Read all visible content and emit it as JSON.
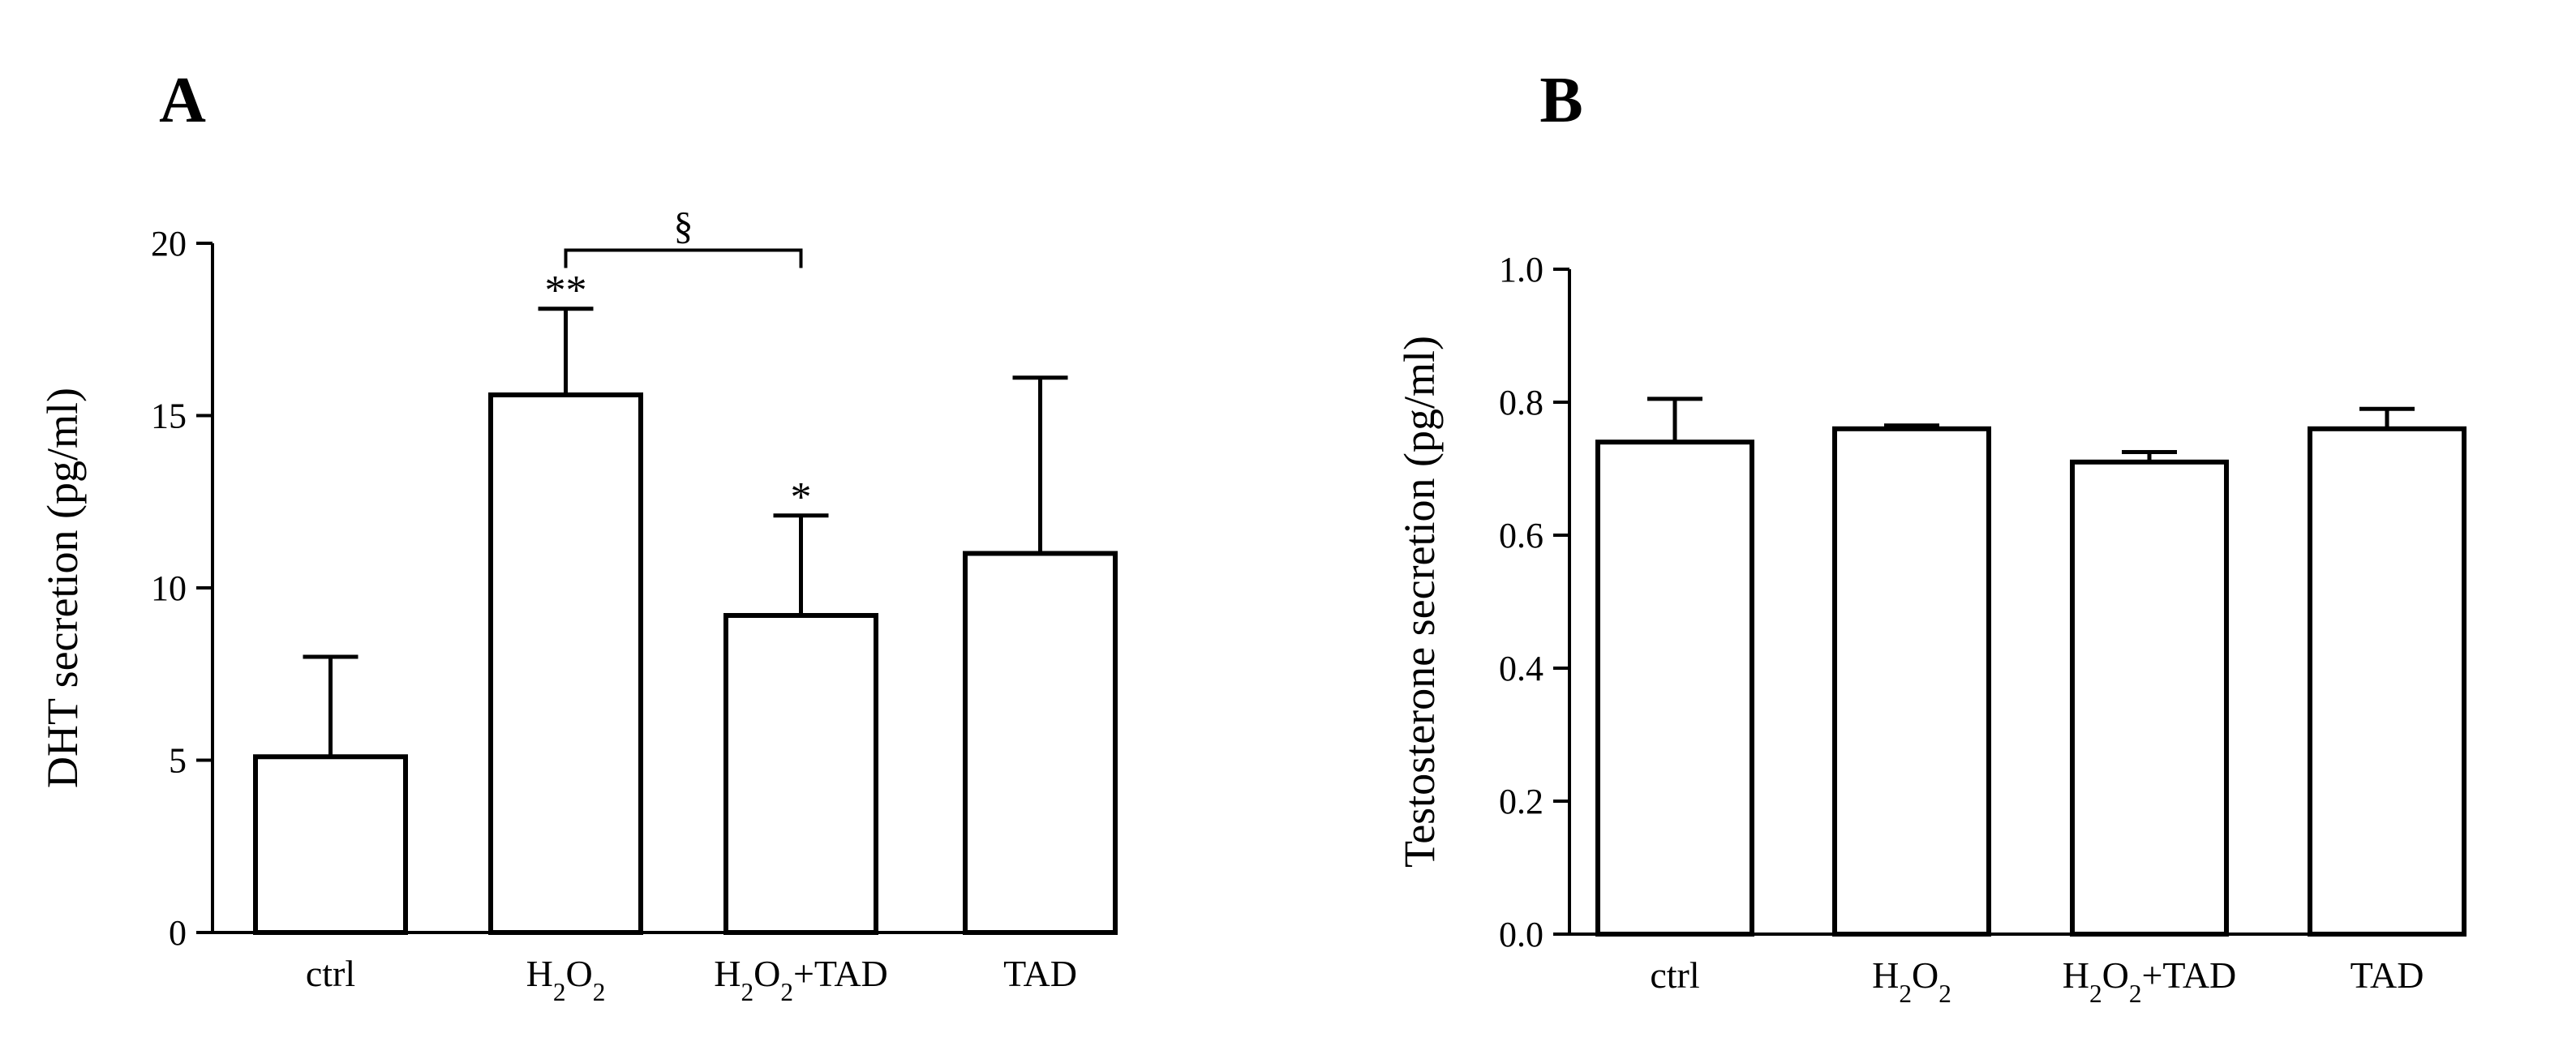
{
  "colors": {
    "ink": "#000000",
    "bar_fill": "#ffffff",
    "background": "#ffffff"
  },
  "chart_data": [
    {
      "panel_label": "A",
      "type": "bar",
      "title": "",
      "xlabel": "",
      "ylabel": "DHT secretion (pg/ml)",
      "ylim": [
        0,
        20
      ],
      "yticks": [
        0,
        5,
        10,
        15,
        20
      ],
      "ytick_labels": [
        "0",
        "5",
        "10",
        "15",
        "20"
      ],
      "categories": [
        {
          "base": "ctrl"
        },
        {
          "base": "H",
          "sub1": "2",
          "mid": "O",
          "sub2": "2",
          "tail": ""
        },
        {
          "base": "H",
          "sub1": "2",
          "mid": "O",
          "sub2": "2",
          "tail": "+TAD"
        },
        {
          "base": "TAD"
        }
      ],
      "values": [
        5.1,
        15.6,
        9.2,
        11.0
      ],
      "error_plus": [
        2.9,
        2.5,
        2.9,
        5.1
      ],
      "significance": [
        "",
        "**",
        "*",
        ""
      ],
      "bracket": {
        "from": 1,
        "to": 2,
        "y": 19.8,
        "label": "§"
      }
    },
    {
      "panel_label": "B",
      "type": "bar",
      "title": "",
      "xlabel": "",
      "ylabel": "Testosterone secretion (pg/ml)",
      "ylim": [
        0,
        1.0
      ],
      "yticks": [
        0,
        0.2,
        0.4,
        0.6,
        0.8,
        1.0
      ],
      "ytick_labels": [
        "0.0",
        "0.2",
        "0.4",
        "0.6",
        "0.8",
        "1.0"
      ],
      "categories": [
        {
          "base": "ctrl"
        },
        {
          "base": "H",
          "sub1": "2",
          "mid": "O",
          "sub2": "2",
          "tail": ""
        },
        {
          "base": "H",
          "sub1": "2",
          "mid": "O",
          "sub2": "2",
          "tail": "+TAD"
        },
        {
          "base": "TAD"
        }
      ],
      "values": [
        0.74,
        0.76,
        0.71,
        0.76
      ],
      "error_plus": [
        0.065,
        0.005,
        0.015,
        0.03
      ],
      "significance": [
        "",
        "",
        "",
        ""
      ],
      "bracket": null
    }
  ]
}
